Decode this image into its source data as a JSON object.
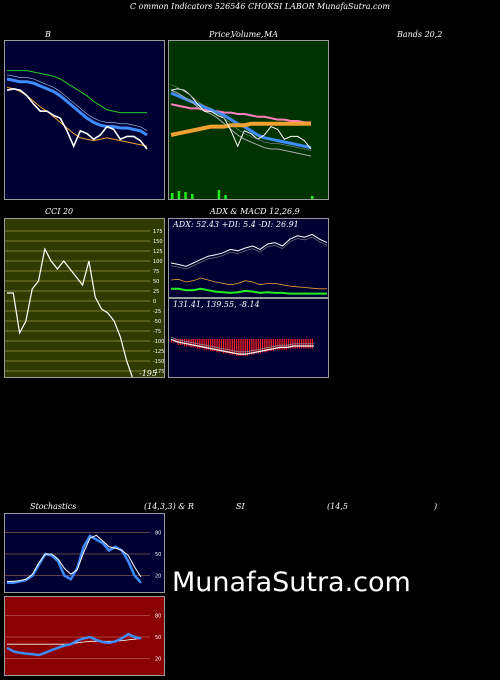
{
  "header": {
    "line": "C         ommon  Indicators 526546  CHOKSI LABOR MunafaSutra.com"
  },
  "titles": {
    "bollinger": "B",
    "price_ma_a": "Price,",
    "price_ma_b": "Volume,",
    "price_ma_c": "MA",
    "bands": "Bands 20,2",
    "cci": "CCI 20",
    "adx": "ADX  & MACD 12,26,9",
    "stoch_a": "Stochastics",
    "stoch_b": "(14,3,3) & R",
    "stoch_c": "SI",
    "stoch_d": "(14,5",
    "stoch_e": ")"
  },
  "adx_text": "ADX: 52.43  +DI: 5.4  -DI: 26.91",
  "macd_text": "131.41,  139.55,  -8.14",
  "cci_value_label": "-195",
  "watermark": "MunafaSutra.com",
  "colors": {
    "navy": "#000033",
    "green_bg": "#003300",
    "olive": "#2e3a00",
    "maroon": "#8b0000",
    "blue": "#3f8cff",
    "orange": "#f0a030",
    "pink": "#ff80c0",
    "lime": "#22ee22",
    "red": "#ff2020"
  },
  "chart_data": [
    {
      "type": "line",
      "id": "bollinger",
      "title": "B",
      "series": [
        {
          "values": [
            86,
            86,
            86,
            86,
            85,
            84,
            83,
            82,
            80,
            77,
            74,
            71,
            68,
            64,
            61,
            58,
            57,
            56,
            56,
            56,
            56,
            56
          ]
        },
        {
          "values": [
            80,
            79,
            78,
            78,
            77,
            75,
            73,
            71,
            68,
            64,
            60,
            56,
            52,
            49,
            47,
            46,
            46,
            45,
            45,
            44,
            43,
            40
          ]
        },
        {
          "values": [
            74,
            73,
            71,
            68,
            64,
            60,
            57,
            53,
            49,
            45,
            41,
            38,
            37,
            36,
            37,
            38,
            37,
            36,
            35,
            34,
            33,
            32
          ]
        },
        {
          "values": [
            72,
            73,
            72,
            68,
            62,
            57,
            57,
            54,
            52,
            43,
            32,
            43,
            41,
            37,
            40,
            46,
            44,
            37,
            39,
            39,
            36,
            30
          ]
        }
      ]
    },
    {
      "type": "line",
      "id": "price_ma",
      "series": [
        {
          "values": [
            62,
            61,
            60,
            59,
            59,
            58,
            57,
            57,
            56,
            56,
            55,
            55,
            54,
            53,
            53,
            52,
            51,
            51,
            50,
            50,
            49,
            49
          ]
        },
        {
          "values": [
            70,
            68,
            66,
            64,
            62,
            60,
            58,
            56,
            54,
            51,
            48,
            46,
            43,
            40,
            38,
            37,
            36,
            35,
            34,
            33,
            32,
            31
          ]
        },
        {
          "values": [
            72,
            70,
            67,
            64,
            60,
            57,
            55,
            52,
            48,
            44,
            40,
            37,
            35,
            33,
            31,
            30,
            30,
            29,
            28,
            27,
            26,
            25
          ]
        },
        {
          "values": [
            40,
            41,
            42,
            43,
            44,
            45,
            46,
            46,
            46,
            47,
            47,
            47,
            48,
            48,
            48,
            48,
            48,
            48,
            48,
            48,
            48,
            48
          ]
        },
        {
          "values": [
            72,
            73,
            72,
            68,
            62,
            57,
            57,
            54,
            52,
            43,
            32,
            43,
            41,
            37,
            40,
            46,
            44,
            37,
            39,
            39,
            36,
            30
          ]
        }
      ],
      "volume": [
        6,
        8,
        7,
        5,
        0,
        0,
        0,
        9,
        4,
        0,
        0,
        0,
        0,
        0,
        0,
        0,
        0,
        0,
        0,
        0,
        0,
        3
      ]
    },
    {
      "type": "line",
      "id": "cci",
      "title": "CCI 20",
      "ylim": [
        -175,
        175
      ],
      "ticks": [
        175,
        150,
        125,
        100,
        75,
        50,
        25,
        0,
        -25,
        -50,
        -75,
        -100,
        -125,
        -150,
        -175
      ],
      "values": [
        20,
        20,
        -80,
        -50,
        30,
        50,
        130,
        100,
        80,
        100,
        80,
        60,
        40,
        100,
        10,
        -20,
        -30,
        -50,
        -90,
        -150,
        -195
      ]
    },
    {
      "type": "line",
      "id": "adx",
      "series": [
        {
          "values": [
            50,
            48,
            45,
            50,
            55,
            60,
            62,
            65,
            70,
            68,
            72,
            75,
            70,
            78,
            80,
            75,
            85,
            90,
            88,
            92,
            85,
            80
          ]
        },
        {
          "values": [
            25,
            26,
            22,
            24,
            28,
            25,
            22,
            20,
            18,
            20,
            24,
            22,
            18,
            20,
            20,
            18,
            16,
            15,
            14,
            13,
            12,
            12
          ]
        },
        {
          "values": [
            12,
            12,
            10,
            10,
            12,
            10,
            8,
            7,
            6,
            7,
            9,
            8,
            6,
            7,
            6,
            6,
            5,
            5,
            5,
            5,
            5,
            5
          ]
        }
      ]
    },
    {
      "type": "bar",
      "id": "macd",
      "values": [
        -3,
        -5,
        -6,
        -7,
        -8,
        -9,
        -10,
        -11,
        -12,
        -13,
        -14,
        -14,
        -13,
        -12,
        -11,
        -10,
        -9,
        -9,
        -8,
        -8,
        -8,
        -8
      ]
    },
    {
      "type": "line",
      "id": "stochastics",
      "ylim": [
        0,
        100
      ],
      "ticks": [
        80,
        50,
        20
      ],
      "series": [
        {
          "values": [
            10,
            10,
            12,
            14,
            20,
            35,
            50,
            48,
            40,
            20,
            15,
            30,
            60,
            75,
            70,
            65,
            55,
            60,
            55,
            40,
            20,
            10
          ]
        },
        {
          "values": [
            12,
            12,
            13,
            15,
            22,
            38,
            50,
            50,
            43,
            30,
            22,
            28,
            52,
            72,
            76,
            68,
            60,
            58,
            55,
            48,
            32,
            18
          ]
        }
      ]
    },
    {
      "type": "line",
      "id": "rsi",
      "ylim": [
        0,
        100
      ],
      "ticks": [
        80,
        50,
        20
      ],
      "series": [
        {
          "values": [
            35,
            30,
            28,
            27,
            26,
            25,
            28,
            32,
            35,
            38,
            40,
            45,
            48,
            50,
            46,
            43,
            42,
            44,
            48,
            54,
            50,
            48
          ]
        },
        {
          "values": [
            40,
            40,
            40,
            40,
            40,
            40,
            40,
            40,
            40,
            40,
            40,
            42,
            43,
            44,
            44,
            44,
            44,
            44,
            45,
            46,
            47,
            48
          ]
        }
      ]
    }
  ]
}
